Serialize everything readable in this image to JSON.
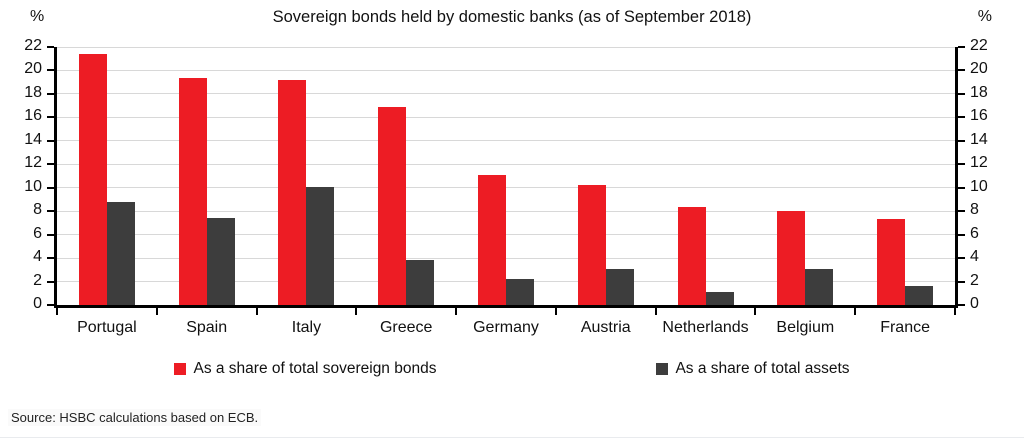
{
  "title": "Sovereign bonds held by domestic banks (as of September 2018)",
  "y_axis_unit_left": "%",
  "y_axis_unit_right": "%",
  "source": "Source: HSBC calculations based on ECB.",
  "legend": [
    {
      "label": "As a share of total sovereign bonds",
      "color": "#ED1C24"
    },
    {
      "label": "As a share of total assets",
      "color": "#3D3D3D"
    }
  ],
  "chart_data": {
    "type": "bar",
    "title": "Sovereign bonds held by domestic banks (as of September 2018)",
    "categories": [
      "Portugal",
      "Spain",
      "Italy",
      "Greece",
      "Germany",
      "Austria",
      "Netherlands",
      "Belgium",
      "France"
    ],
    "series": [
      {
        "name": "As a share of total sovereign bonds",
        "color": "#ED1C24",
        "values": [
          21.4,
          19.4,
          19.2,
          16.9,
          11.1,
          10.2,
          8.4,
          8.0,
          7.3
        ]
      },
      {
        "name": "As a share of total assets",
        "color": "#3D3D3D",
        "values": [
          8.8,
          7.4,
          10.1,
          3.8,
          2.2,
          3.1,
          1.1,
          3.1,
          1.6
        ]
      }
    ],
    "xlabel": "",
    "ylabel": "%",
    "ylim": [
      0,
      22
    ],
    "ytick_step": 2,
    "dual_y_axis": true,
    "grid": true,
    "gridline_color": "#d8d8d8",
    "legend_position": "bottom"
  }
}
